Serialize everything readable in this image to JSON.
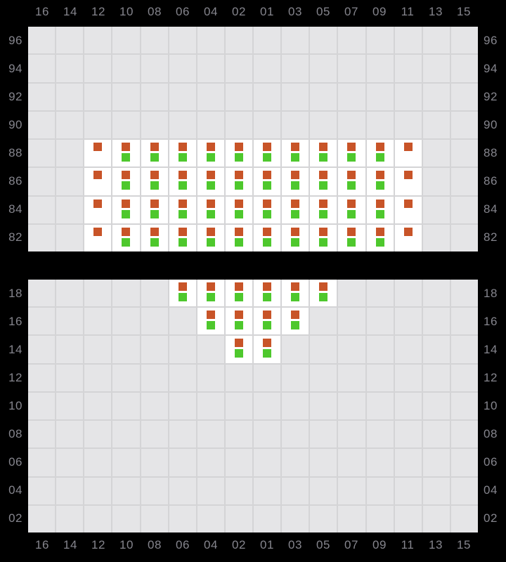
{
  "colors": {
    "background": "#000000",
    "cell_bg": "#e5e5e7",
    "grid_line": "#d4d4d6",
    "active_cell_bg": "#ffffff",
    "label_text": "#85858d",
    "marker_orange": "#c85428",
    "marker_green": "#4ec82d"
  },
  "columns": [
    "16",
    "14",
    "12",
    "10",
    "08",
    "06",
    "04",
    "02",
    "01",
    "03",
    "05",
    "07",
    "09",
    "11",
    "13",
    "15"
  ],
  "panels": [
    {
      "id": "upper",
      "side_labels": [
        "96",
        "94",
        "92",
        "90",
        "88",
        "86",
        "84",
        "82"
      ],
      "marked_rows": [
        {
          "row": "88",
          "orange_only": [
            "12",
            "11"
          ],
          "orange_and_green": [
            "10",
            "08",
            "06",
            "04",
            "02",
            "01",
            "03",
            "05",
            "07",
            "09"
          ]
        },
        {
          "row": "86",
          "orange_only": [
            "12",
            "11"
          ],
          "orange_and_green": [
            "10",
            "08",
            "06",
            "04",
            "02",
            "01",
            "03",
            "05",
            "07",
            "09"
          ]
        },
        {
          "row": "84",
          "orange_only": [
            "12",
            "11"
          ],
          "orange_and_green": [
            "10",
            "08",
            "06",
            "04",
            "02",
            "01",
            "03",
            "05",
            "07",
            "09"
          ]
        },
        {
          "row": "82",
          "orange_only": [
            "12",
            "11"
          ],
          "orange_and_green": [
            "10",
            "08",
            "06",
            "04",
            "02",
            "01",
            "03",
            "05",
            "07",
            "09"
          ]
        }
      ]
    },
    {
      "id": "lower",
      "side_labels": [
        "18",
        "16",
        "14",
        "12",
        "10",
        "08",
        "06",
        "04",
        "02"
      ],
      "marked_rows": [
        {
          "row": "18",
          "orange_only": [],
          "orange_and_green": [
            "06",
            "04",
            "02",
            "01",
            "03",
            "05"
          ]
        },
        {
          "row": "16",
          "orange_only": [],
          "orange_and_green": [
            "04",
            "02",
            "01",
            "03"
          ]
        },
        {
          "row": "14",
          "orange_only": [],
          "orange_and_green": [
            "02",
            "01"
          ]
        }
      ]
    }
  ]
}
